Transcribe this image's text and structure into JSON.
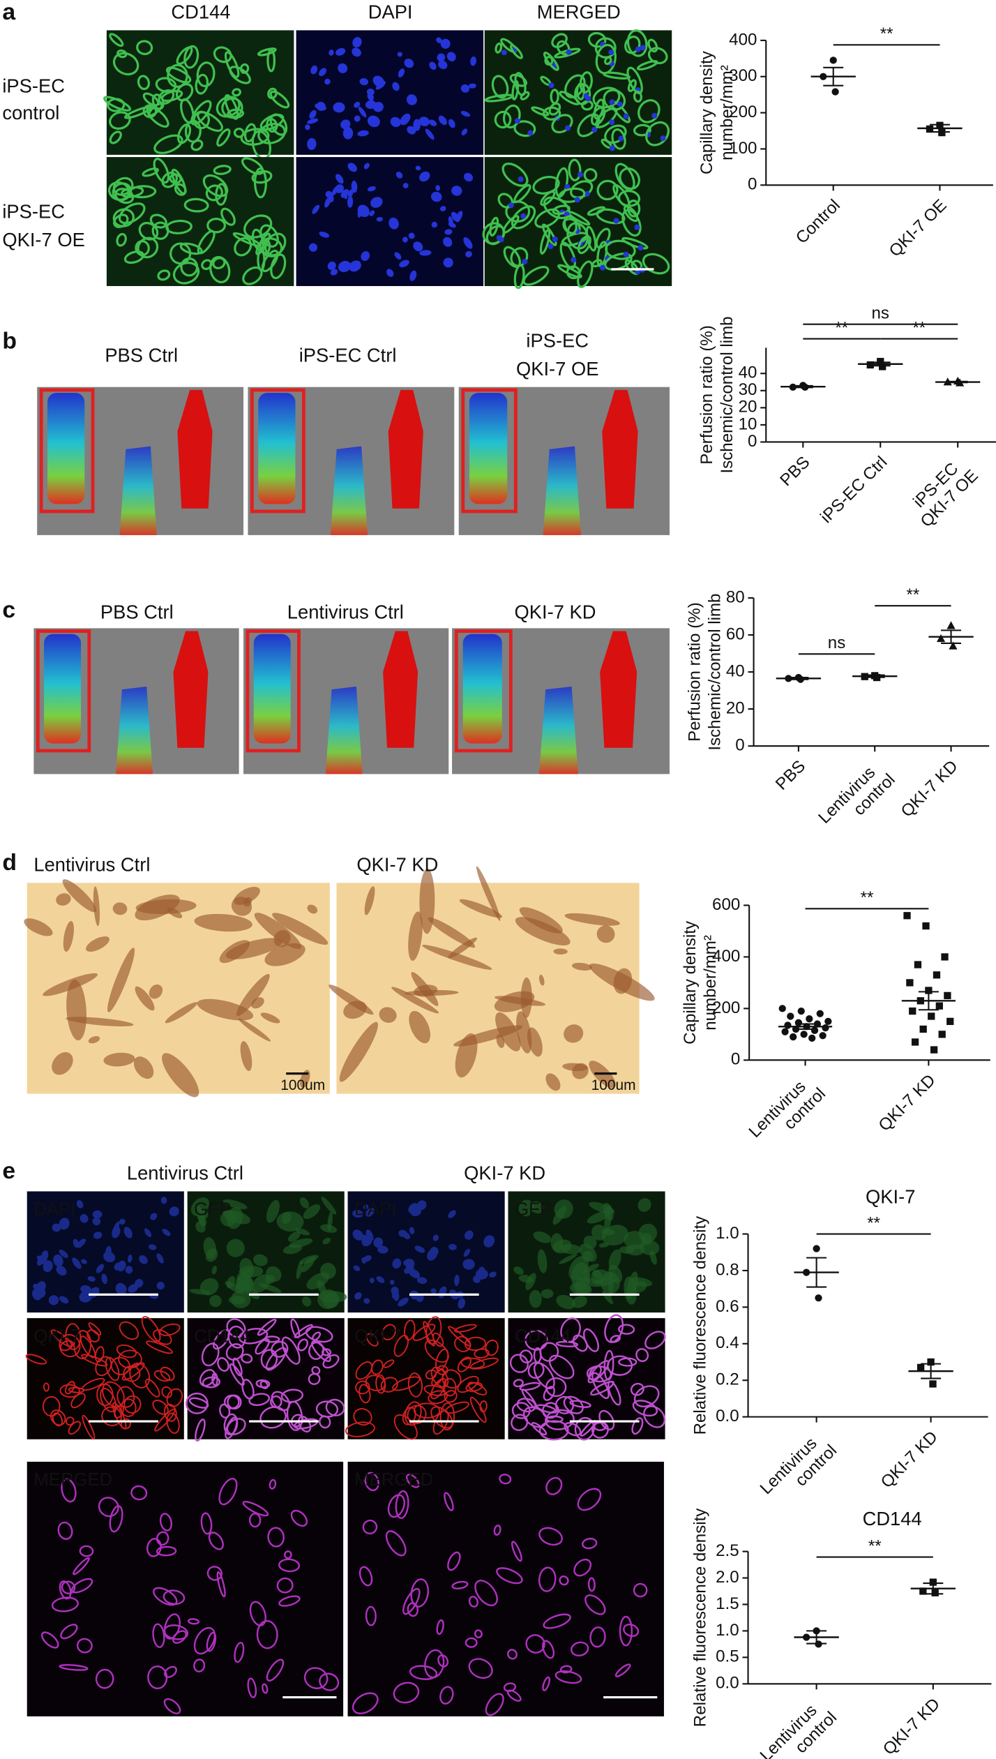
{
  "panel_labels": [
    "a",
    "b",
    "c",
    "d",
    "e"
  ],
  "panel_a": {
    "columns": [
      "CD144",
      "DAPI",
      "MERGED"
    ],
    "rows": [
      [
        "iPS-EC",
        "control"
      ],
      [
        "iPS-EC",
        "QKI-7 OE"
      ]
    ]
  },
  "panel_b": {
    "images": [
      "PBS Ctrl",
      "iPS-EC Ctrl",
      [
        "iPS-EC",
        "QKI-7 OE"
      ]
    ]
  },
  "panel_c": {
    "images": [
      "PBS Ctrl",
      "Lentivirus Ctrl",
      "QKI-7 KD"
    ]
  },
  "panel_d": {
    "images": [
      "Lentivirus Ctrl",
      "QKI-7 KD"
    ],
    "scale_bar": [
      "100um",
      "100um"
    ]
  },
  "panel_e": {
    "groups": [
      "Lentivirus Ctrl",
      "QKI-7 KD"
    ],
    "tiles": [
      "DAPI",
      "GFP",
      "DAPI",
      "GFP",
      "QKI-7",
      "CD144",
      "QKI-7",
      "CD144"
    ],
    "merged": [
      "MERGED",
      "MERGED"
    ]
  },
  "chart_data": [
    {
      "type": "dot",
      "ylabel": [
        "Capillary density",
        "number/mm²"
      ],
      "categories": [
        "Control",
        "QKI-7 OE"
      ],
      "points": [
        [
          345,
          300,
          258
        ],
        [
          165,
          155,
          145
        ]
      ],
      "means": [
        300,
        157
      ],
      "errors": [
        25,
        10
      ],
      "ylim": [
        0,
        400
      ],
      "yticks": [
        0,
        100,
        200,
        300,
        400
      ],
      "brackets": [
        {
          "label": "**",
          "between": [
            0,
            1
          ]
        }
      ]
    },
    {
      "type": "dot",
      "ylabel": [
        "Perfusion ratio (%)",
        "Ischemic/control limb"
      ],
      "categories": [
        "PBS",
        "iPS-EC Ctrl",
        [
          "iPS-EC",
          "QKI-7 OE"
        ]
      ],
      "points": [
        [
          33,
          32,
          32
        ],
        [
          47,
          45,
          44
        ],
        [
          35.5,
          35,
          34.5
        ]
      ],
      "means": [
        32.3,
        45.5,
        35
      ],
      "errors": [
        0.5,
        1,
        0.3
      ],
      "ylim": [
        0,
        55
      ],
      "yticks": [
        0,
        10,
        20,
        30,
        40
      ],
      "brackets": [
        {
          "label": "ns",
          "between": [
            0,
            2
          ]
        },
        {
          "label": "**",
          "between": [
            0,
            1
          ]
        },
        {
          "label": "**",
          "between": [
            1,
            2
          ]
        }
      ]
    },
    {
      "type": "dot",
      "ylabel": [
        "Perfusion ratio (%)",
        "Ischemic/control limb"
      ],
      "categories": [
        "PBS",
        [
          "Lentivirus",
          "control"
        ],
        "QKI-7 KD"
      ],
      "points": [
        [
          37,
          36.5,
          36
        ],
        [
          38,
          37.5,
          37
        ],
        [
          65,
          58,
          54
        ]
      ],
      "means": [
        36.5,
        37.7,
        59
      ],
      "errors": [
        0.5,
        0.6,
        3.5
      ],
      "ylim": [
        0,
        80
      ],
      "yticks": [
        0,
        20,
        40,
        60,
        80
      ],
      "brackets": [
        {
          "label": "ns",
          "between": [
            0,
            1
          ]
        },
        {
          "label": "**",
          "between": [
            1,
            2
          ]
        }
      ]
    },
    {
      "type": "dot",
      "ylabel": [
        "Capillary density",
        "number/mm²"
      ],
      "categories": [
        [
          "Lentivirus",
          "control"
        ],
        "QKI-7 KD"
      ],
      "points": [
        [
          200,
          190,
          180,
          170,
          160,
          150,
          145,
          140,
          135,
          130,
          125,
          120,
          115,
          110,
          100,
          95,
          90,
          85
        ],
        [
          560,
          520,
          400,
          370,
          330,
          300,
          270,
          250,
          230,
          210,
          190,
          170,
          150,
          120,
          100,
          70,
          40
        ]
      ],
      "means": [
        130,
        230
      ],
      "errors": [
        10,
        35
      ],
      "ylim": [
        0,
        600
      ],
      "yticks": [
        0,
        200,
        400,
        600
      ],
      "brackets": [
        {
          "label": "**",
          "between": [
            0,
            1
          ]
        }
      ]
    },
    {
      "type": "dot",
      "title": "QKI-7",
      "ylabel": [
        "Relative fluorescence density"
      ],
      "categories": [
        [
          "Lentivirus",
          "control"
        ],
        "QKI-7 KD"
      ],
      "points": [
        [
          0.92,
          0.79,
          0.65
        ],
        [
          0.3,
          0.27,
          0.18
        ]
      ],
      "means": [
        0.79,
        0.25
      ],
      "errors": [
        0.08,
        0.04
      ],
      "ylim": [
        0,
        1
      ],
      "yticks": [
        {
          "value": 0,
          "label": "0.0"
        },
        0.2,
        0.4,
        0.6,
        0.8,
        {
          "value": 1,
          "label": "1.0"
        }
      ],
      "brackets": [
        {
          "label": "**",
          "between": [
            0,
            1
          ]
        }
      ]
    },
    {
      "type": "dot",
      "title": "CD144",
      "ylabel": [
        "Relative fluorescence density"
      ],
      "categories": [
        [
          "Lentivirus",
          "control"
        ],
        "QKI-7 KD"
      ],
      "points": [
        [
          1.0,
          0.88,
          0.75
        ],
        [
          1.92,
          1.75,
          1.72
        ]
      ],
      "means": [
        0.88,
        1.8
      ],
      "errors": [
        0.12,
        0.1
      ],
      "ylim": [
        0,
        2.5
      ],
      "yticks": [
        {
          "value": 0,
          "label": "0.0"
        },
        0.5,
        {
          "value": 1,
          "label": "1.0"
        },
        1.5,
        {
          "value": 2,
          "label": "2.0"
        },
        2.5
      ],
      "brackets": [
        {
          "label": "**",
          "between": [
            0,
            1
          ]
        }
      ]
    }
  ]
}
